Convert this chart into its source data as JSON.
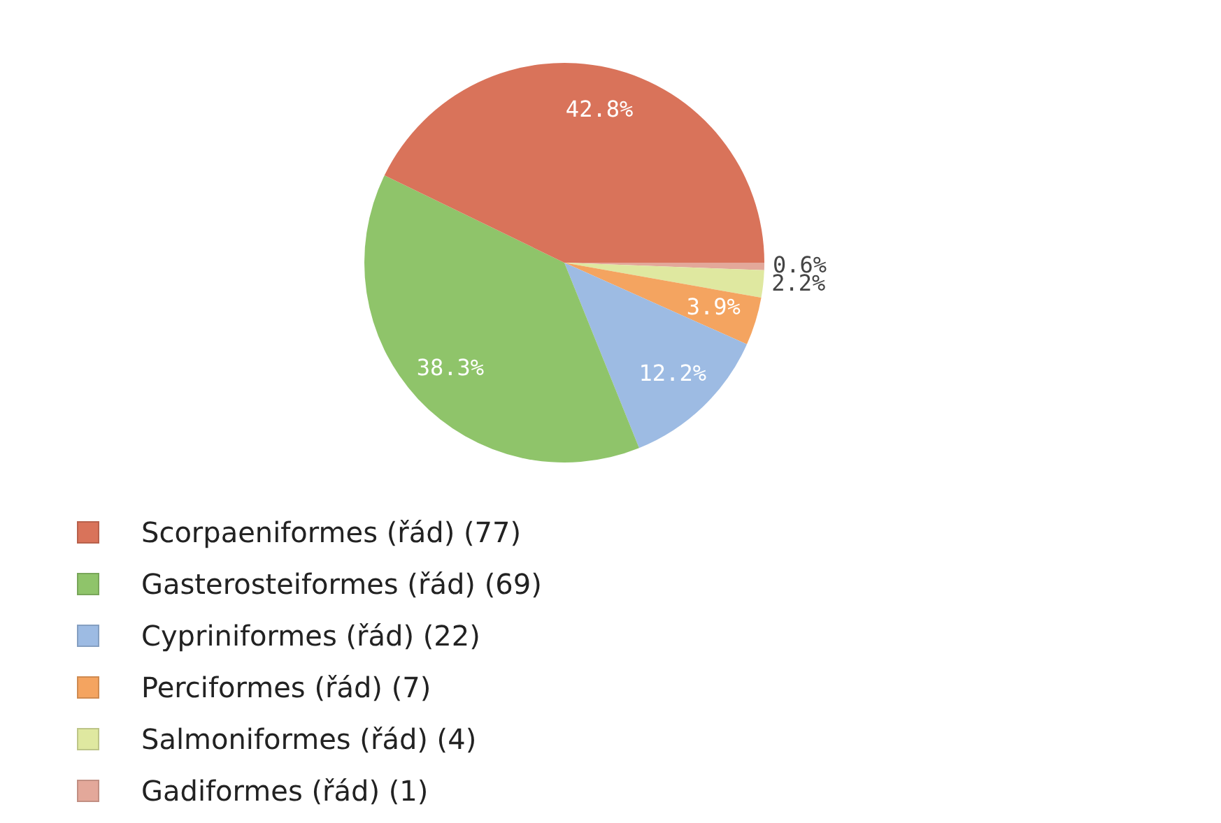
{
  "chart_data": {
    "type": "pie",
    "categories": [
      "Scorpaeniformes (řád) (77)",
      "Gasterosteiformes (řád) (69)",
      "Cypriniformes (řád) (22)",
      "Perciformes (řád) (7)",
      "Salmoniformes (řád) (4)",
      "Gadiformes (řád) (1)"
    ],
    "values": [
      42.8,
      38.3,
      12.2,
      3.9,
      2.2,
      0.6
    ],
    "value_labels": [
      "42.8%",
      "38.3%",
      "12.2%",
      "3.9%",
      "2.2%",
      "0.6%"
    ],
    "colors": [
      "#d9735a",
      "#8fc46a",
      "#9dbbe3",
      "#f4a460",
      "#dfe8a0",
      "#e3a89a"
    ],
    "legend": "bottom"
  }
}
